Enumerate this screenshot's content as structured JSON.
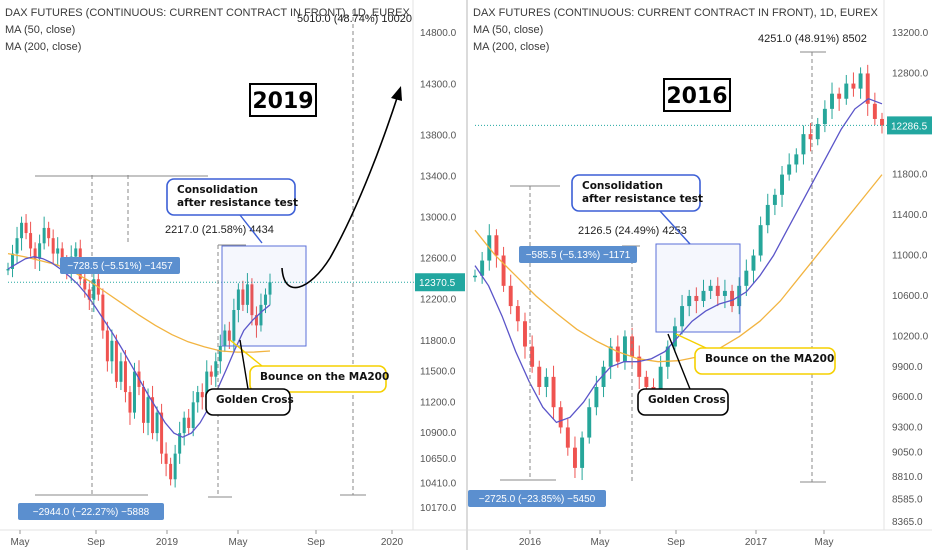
{
  "colors": {
    "up": "#26a69a",
    "down": "#ef5350",
    "ma50": "#5b55c9",
    "ma200": "#f2b441",
    "label_bg": "#5b8fcf",
    "price_tag": "#22a7a0",
    "callout_blue": "#3c5fd6",
    "callout_yellow": "#f5d000",
    "box_blue": "#5a6fd8"
  },
  "chart_data": [
    {
      "type": "candlestick",
      "title": "DAX FUTURES (CONTINUOUS: CURRENT CONTRACT IN FRONT), 1D, EUREX",
      "legend": [
        "MA (50, close)",
        "MA (200, close)"
      ],
      "year_tag": "2019",
      "x_ticks": [
        "May",
        "Sep",
        "2019",
        "May",
        "Sep",
        "2020"
      ],
      "y_ticks": [
        "14800.0",
        "14300.0",
        "13800.0",
        "13400.0",
        "13000.0",
        "12600.0",
        "12200.0",
        "11800.0",
        "11500.0",
        "11200.0",
        "10900.0",
        "10650.0",
        "10410.0",
        "10170.0"
      ],
      "last_price": "12370.5",
      "measurements": [
        "−728.5 (−5.51%) −1457",
        "−2944.0 (−22.27%) −5888",
        "2217.0 (21.58%) 4434",
        "5010.0 (48.74%) 10020"
      ],
      "callouts": [
        "Consolidation\nafter resistance test",
        "Bounce on the MA200",
        "Golden Cross"
      ],
      "close": [
        12500,
        12650,
        12800,
        12950,
        12850,
        12700,
        12600,
        12750,
        12900,
        12800,
        12650,
        12700,
        12550,
        12480,
        12620,
        12700,
        12400,
        12300,
        12200,
        12400,
        12250,
        11900,
        11600,
        11800,
        11400,
        11600,
        11300,
        11100,
        11500,
        11350,
        11000,
        11250,
        10900,
        11100,
        10700,
        10600,
        10450,
        10700,
        10900,
        11050,
        10950,
        11200,
        11300,
        11250,
        11500,
        11450,
        11600,
        11750,
        11900,
        11800,
        12100,
        12300,
        12150,
        12350,
        12050,
        11950,
        12150,
        12250,
        12370
      ],
      "ma50": [
        12500,
        12550,
        12600,
        12620,
        12600,
        12560,
        12500,
        12430,
        12350,
        12250,
        12130,
        12000,
        11870,
        11730,
        11580,
        11430,
        11280,
        11140,
        11000,
        10900,
        10860,
        10900,
        11000,
        11150,
        11330,
        11520,
        11720,
        11900,
        12000,
        12080,
        12150
      ],
      "ma200": [
        12650,
        12620,
        12580,
        12540,
        12470,
        12380,
        12270,
        12160,
        12050,
        11950,
        11860,
        11790,
        11740,
        11700,
        11690,
        11690,
        11700
      ],
      "projection_target": "14800"
    },
    {
      "type": "candlestick",
      "title": "DAX FUTURES (CONTINUOUS: CURRENT CONTRACT IN FRONT), 1D, EUREX",
      "legend": [
        "MA (50, close)",
        "MA (200, close)"
      ],
      "year_tag": "2016",
      "x_ticks": [
        "2016",
        "May",
        "Sep",
        "2017",
        "May"
      ],
      "y_ticks": [
        "13200.0",
        "12800.0",
        "11800.0",
        "11400.0",
        "11000.0",
        "10600.0",
        "10200.0",
        "9900.0",
        "9600.0",
        "9300.0",
        "9050.0",
        "8810.0",
        "8585.0",
        "8365.0"
      ],
      "last_price": "12286.5",
      "measurements": [
        "−585.5 (−5.13%) −1171",
        "−2725.0 (−23.85%) −5450",
        "2126.5 (24.49%) 4253",
        "4251.0 (48.91%) 8502"
      ],
      "callouts": [
        "Consolidation\nafter resistance test",
        "Bounce on the MA200",
        "Golden Cross"
      ],
      "close": [
        10800,
        10950,
        11200,
        11000,
        10700,
        10500,
        10350,
        10100,
        9900,
        9700,
        9800,
        9500,
        9300,
        9100,
        8900,
        9200,
        9500,
        9700,
        9900,
        10100,
        9950,
        10200,
        10000,
        9800,
        9700,
        9600,
        9900,
        10100,
        10300,
        10500,
        10600,
        10550,
        10650,
        10700,
        10600,
        10650,
        10500,
        10700,
        10850,
        11000,
        11300,
        11500,
        11600,
        11800,
        11900,
        12000,
        12200,
        12150,
        12300,
        12450,
        12600,
        12550,
        12700,
        12650,
        12800,
        12500,
        12350,
        12286
      ],
      "ma50": [
        10900,
        10700,
        10400,
        10050,
        9750,
        9500,
        9350,
        9400,
        9550,
        9750,
        9900,
        9950,
        9950,
        9980,
        10050,
        10200,
        10350,
        10450,
        10520,
        10560,
        10640,
        10800,
        11000,
        11250,
        11500,
        11750,
        12000,
        12250,
        12450,
        12550,
        12500
      ],
      "ma200": [
        11250,
        11000,
        10800,
        10600,
        10430,
        10270,
        10150,
        10050,
        9980,
        9950,
        9960,
        10000,
        10080,
        10200,
        10350,
        10550,
        10800,
        11050,
        11300,
        11550,
        11800
      ]
    }
  ]
}
